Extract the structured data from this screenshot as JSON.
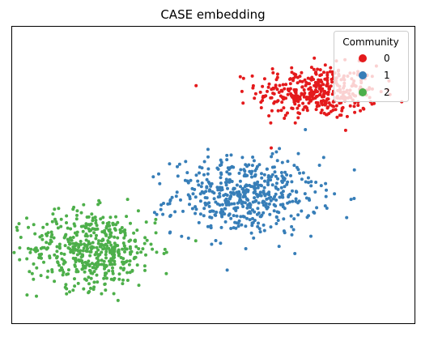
{
  "chart_data": {
    "type": "scatter",
    "title": "CASE embedding",
    "xlabel": "",
    "ylabel": "",
    "xlim": [
      0,
      10
    ],
    "ylim": [
      0,
      10
    ],
    "grid": false,
    "ticks_visible": false,
    "legend": {
      "title": "Community",
      "placement": "top-right"
    },
    "series": [
      {
        "name": "0",
        "color": "#e41a1c",
        "cluster_center": [
          7.6,
          7.8
        ],
        "cluster_spread": [
          0.75,
          0.45
        ],
        "approx_points": 400
      },
      {
        "name": "1",
        "color": "#377eb8",
        "cluster_center": [
          5.8,
          4.3
        ],
        "cluster_spread": [
          0.9,
          0.65
        ],
        "approx_points": 500
      },
      {
        "name": "2",
        "color": "#4daf4a",
        "cluster_center": [
          2.0,
          2.5
        ],
        "cluster_spread": [
          0.8,
          0.65
        ],
        "approx_points": 500
      }
    ]
  }
}
